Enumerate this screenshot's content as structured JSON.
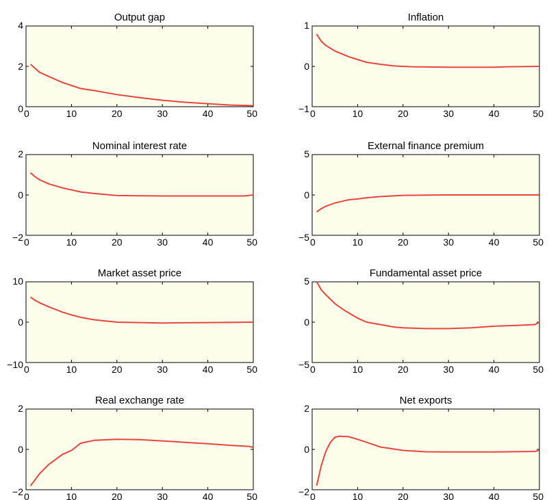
{
  "colors": {
    "plot_background": "#fdfdeb",
    "line": "#e8463a",
    "axis": "#000000"
  },
  "chart_data": [
    {
      "type": "line",
      "title": "Output gap",
      "xlim": [
        0,
        50
      ],
      "ylim": [
        0,
        4
      ],
      "xticks": [
        0,
        10,
        20,
        30,
        40,
        50
      ],
      "yticks": [
        0,
        2,
        4
      ],
      "grid": false,
      "x": [
        1,
        2,
        3,
        5,
        8,
        10,
        12,
        15,
        20,
        25,
        30,
        35,
        40,
        45,
        50
      ],
      "y": [
        2.1,
        1.9,
        1.7,
        1.5,
        1.2,
        1.05,
        0.9,
        0.8,
        0.6,
        0.45,
        0.32,
        0.22,
        0.15,
        0.08,
        0.05
      ]
    },
    {
      "type": "line",
      "title": "Inflation",
      "xlim": [
        0,
        50
      ],
      "ylim": [
        -1,
        1
      ],
      "xticks": [
        0,
        10,
        20,
        30,
        40,
        50
      ],
      "yticks": [
        -1,
        0,
        1
      ],
      "grid": false,
      "x": [
        1,
        2,
        3,
        5,
        8,
        10,
        12,
        15,
        18,
        22,
        30,
        40,
        43,
        50
      ],
      "y": [
        0.8,
        0.62,
        0.52,
        0.38,
        0.24,
        0.17,
        0.1,
        0.05,
        0.01,
        -0.01,
        -0.02,
        -0.02,
        -0.01,
        0.0
      ]
    },
    {
      "type": "line",
      "title": "Nominal interest rate",
      "xlim": [
        0,
        50
      ],
      "ylim": [
        -2,
        2
      ],
      "xticks": [
        0,
        10,
        20,
        30,
        40,
        50
      ],
      "yticks": [
        -2,
        0,
        2
      ],
      "grid": false,
      "x": [
        1,
        2,
        3,
        5,
        8,
        10,
        12,
        15,
        20,
        30,
        40,
        48,
        50
      ],
      "y": [
        1.1,
        0.9,
        0.75,
        0.55,
        0.35,
        0.25,
        0.15,
        0.07,
        -0.03,
        -0.05,
        -0.05,
        -0.05,
        0.0
      ]
    },
    {
      "type": "line",
      "title": "External finance premium",
      "xlim": [
        0,
        50
      ],
      "ylim": [
        -5,
        5
      ],
      "xticks": [
        0,
        10,
        20,
        30,
        40,
        50
      ],
      "yticks": [
        -5,
        0,
        5
      ],
      "grid": false,
      "x": [
        1,
        2,
        3,
        5,
        8,
        10,
        12,
        15,
        20,
        30,
        40,
        50
      ],
      "y": [
        -2.1,
        -1.7,
        -1.4,
        -1.0,
        -0.6,
        -0.5,
        -0.35,
        -0.2,
        -0.05,
        0.0,
        0.0,
        0.0
      ]
    },
    {
      "type": "line",
      "title": "Market asset price",
      "xlim": [
        0,
        50
      ],
      "ylim": [
        -10,
        10
      ],
      "xticks": [
        0,
        10,
        20,
        30,
        40,
        50
      ],
      "yticks": [
        -10,
        0,
        10
      ],
      "grid": false,
      "x": [
        1,
        2,
        3,
        5,
        8,
        10,
        12,
        15,
        20,
        25,
        30,
        40,
        50
      ],
      "y": [
        6.2,
        5.4,
        4.8,
        3.8,
        2.5,
        1.8,
        1.2,
        0.6,
        0.0,
        -0.1,
        -0.2,
        -0.1,
        0.0
      ]
    },
    {
      "type": "line",
      "title": "Fundamental asset price",
      "xlim": [
        0,
        50
      ],
      "ylim": [
        -5,
        5
      ],
      "xticks": [
        0,
        10,
        20,
        30,
        40,
        50
      ],
      "yticks": [
        -5,
        0,
        5
      ],
      "grid": false,
      "x": [
        1,
        2,
        3,
        5,
        7,
        10,
        12,
        15,
        18,
        20,
        25,
        30,
        35,
        40,
        45,
        49,
        50
      ],
      "y": [
        5.0,
        4.0,
        3.4,
        2.3,
        1.5,
        0.5,
        0.0,
        -0.3,
        -0.6,
        -0.7,
        -0.8,
        -0.8,
        -0.7,
        -0.5,
        -0.4,
        -0.3,
        0.0
      ]
    },
    {
      "type": "line",
      "title": "Real exchange rate",
      "xlim": [
        0,
        50
      ],
      "ylim": [
        -2,
        2
      ],
      "xticks": [
        0,
        10,
        20,
        30,
        40,
        50
      ],
      "yticks": [
        -2,
        0,
        2
      ],
      "grid": false,
      "x": [
        1,
        2,
        3,
        5,
        8,
        10,
        12,
        15,
        20,
        25,
        30,
        35,
        40,
        45,
        49,
        50
      ],
      "y": [
        -1.8,
        -1.5,
        -1.2,
        -0.75,
        -0.25,
        -0.05,
        0.3,
        0.45,
        0.5,
        0.48,
        0.42,
        0.35,
        0.28,
        0.2,
        0.15,
        0.1
      ]
    },
    {
      "type": "line",
      "title": "Net exports",
      "xlim": [
        0,
        50
      ],
      "ylim": [
        -2,
        2
      ],
      "xticks": [
        0,
        10,
        20,
        30,
        40,
        50
      ],
      "yticks": [
        -2,
        0,
        2
      ],
      "grid": false,
      "x": [
        1,
        2,
        3,
        4,
        5,
        6,
        8,
        10,
        12,
        15,
        20,
        25,
        30,
        40,
        49,
        50
      ],
      "y": [
        -1.8,
        -0.8,
        -0.1,
        0.35,
        0.6,
        0.65,
        0.63,
        0.5,
        0.35,
        0.12,
        -0.05,
        -0.12,
        -0.13,
        -0.13,
        -0.1,
        -0.05
      ]
    }
  ]
}
